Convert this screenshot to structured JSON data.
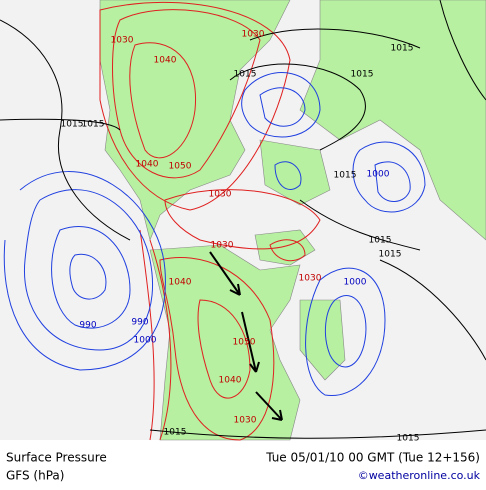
{
  "isobars": [
    "1030",
    "1030",
    "1040",
    "1015",
    "1015",
    "1015",
    "1015",
    "1015",
    "1040",
    "1050",
    "1030",
    "1015",
    "1000",
    "1030",
    "1015",
    "1015",
    "1040",
    "1030",
    "1000",
    "990",
    "990",
    "1000",
    "1050",
    "1040",
    "1030",
    "1015",
    "1015"
  ],
  "footer": {
    "title": "Surface Pressure",
    "model": "GFS (hPa)",
    "valid": "Tue 05/01/10 00 GMT (Tue 12+156)",
    "credit": "©weatheronline.co.uk"
  }
}
